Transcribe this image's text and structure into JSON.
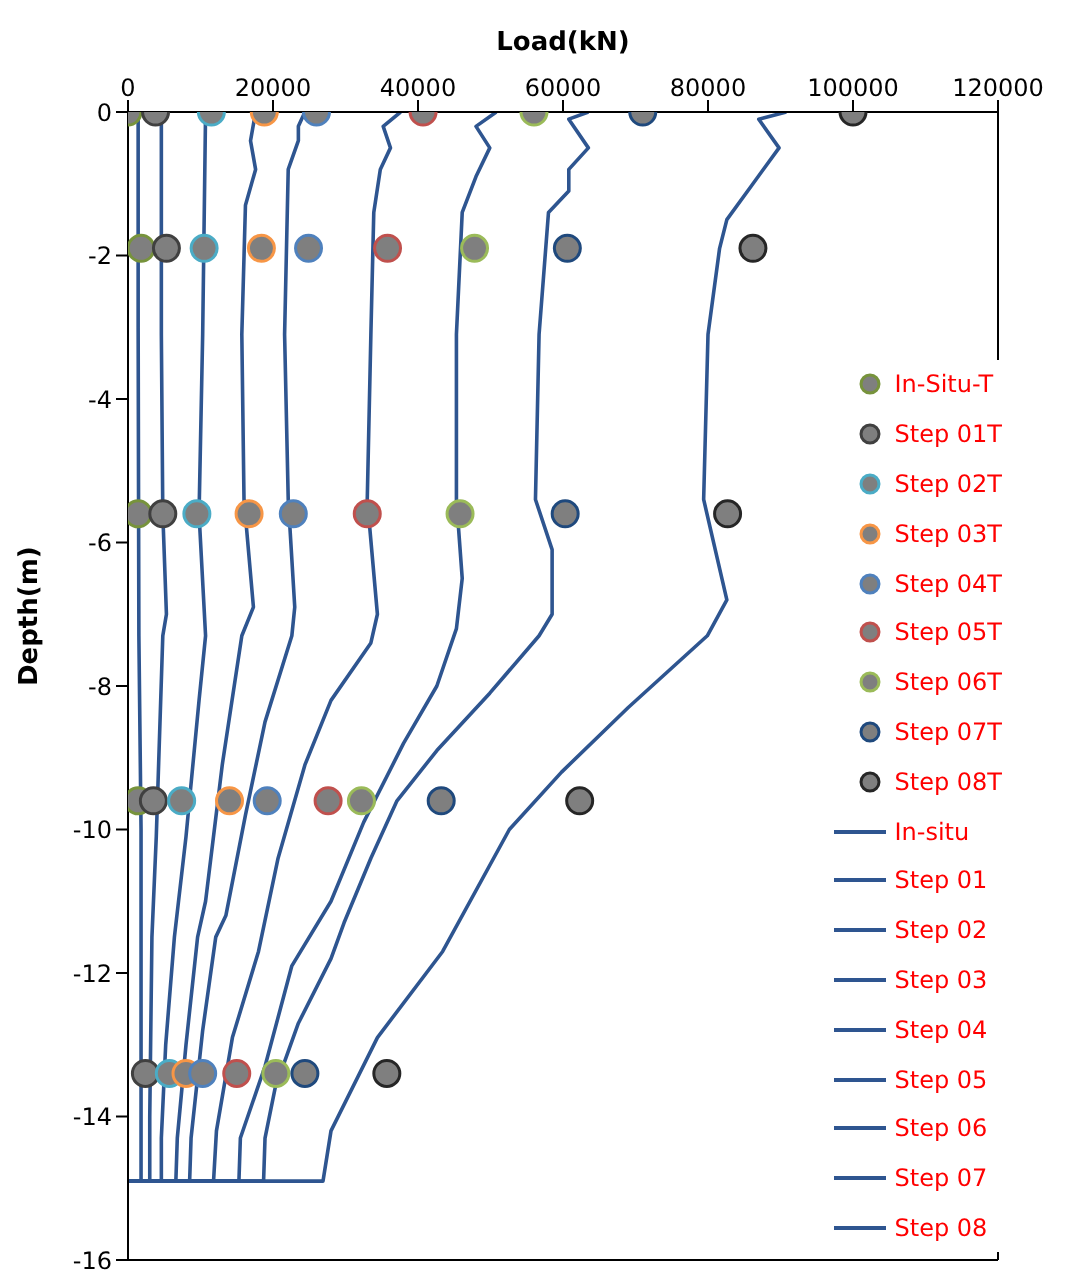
{
  "chart_data": {
    "type": "line",
    "xlabel": "Load(kN)",
    "ylabel": "Depth(m)",
    "xlim": [
      0,
      120000
    ],
    "xticks": [
      0,
      20000,
      40000,
      60000,
      80000,
      100000,
      120000
    ],
    "ylim": [
      -16,
      0
    ],
    "yticks": [
      0,
      -2,
      -4,
      -6,
      -8,
      -10,
      -12,
      -14,
      -16
    ],
    "legend": "right",
    "series": [
      {
        "name": "In-Situ-T",
        "type": "scatter",
        "marker": "circle",
        "color": "#77933c",
        "x": [
          0,
          1800,
          1400,
          1400,
          null
        ],
        "values": [
          0,
          -1.9,
          -5.6,
          -9.6,
          null
        ]
      },
      {
        "name": "Step 01T",
        "type": "scatter",
        "marker": "circle",
        "color": "#404040",
        "x": [
          3800,
          5300,
          4800,
          3500,
          2400
        ],
        "values": [
          0,
          -1.9,
          -5.6,
          -9.6,
          -13.4
        ]
      },
      {
        "name": "Step 02T",
        "type": "scatter",
        "marker": "circle",
        "color": "#4bacc6",
        "x": [
          11500,
          10500,
          9500,
          7400,
          5700
        ],
        "values": [
          0,
          -1.9,
          -5.6,
          -9.6,
          -13.4
        ]
      },
      {
        "name": "Step 03T",
        "type": "scatter",
        "marker": "circle",
        "color": "#f79646",
        "x": [
          18800,
          18400,
          16700,
          14000,
          8000
        ],
        "values": [
          0,
          -1.9,
          -5.6,
          -9.6,
          -13.4
        ]
      },
      {
        "name": "Step 04T",
        "type": "scatter",
        "marker": "circle",
        "color": "#4f81bd",
        "x": [
          26000,
          24900,
          22800,
          19200,
          10300
        ],
        "values": [
          0,
          -1.9,
          -5.6,
          -9.6,
          -13.4
        ]
      },
      {
        "name": "Step 05T",
        "type": "scatter",
        "marker": "circle",
        "color": "#c0504d",
        "x": [
          40700,
          35800,
          33000,
          27600,
          15000
        ],
        "values": [
          0,
          -1.9,
          -5.6,
          -9.6,
          -13.4
        ]
      },
      {
        "name": "Step 06T",
        "type": "scatter",
        "marker": "circle",
        "color": "#9bbb59",
        "x": [
          56000,
          47800,
          45800,
          32200,
          20400
        ],
        "values": [
          0,
          -1.9,
          -5.6,
          -9.6,
          -13.4
        ]
      },
      {
        "name": "Step 07T",
        "type": "scatter",
        "marker": "circle",
        "color": "#1f497d",
        "x": [
          71000,
          60600,
          60300,
          43200,
          24400
        ],
        "values": [
          0,
          -1.9,
          -5.6,
          -9.6,
          -13.4
        ]
      },
      {
        "name": "Step 08T",
        "type": "scatter",
        "marker": "circle",
        "color": "#262626",
        "x": [
          100000,
          86200,
          82700,
          62300,
          35700
        ],
        "values": [
          0,
          -1.9,
          -5.6,
          -9.6,
          -13.4
        ]
      },
      {
        "name": "In-situ",
        "marker": "none",
        "color": "#2e5590",
        "x": [
          1400,
          1400,
          1500,
          1800,
          1800,
          1800,
          0
        ],
        "values": [
          0,
          -3,
          -7.3,
          -10,
          -11.5,
          -14.9,
          -14.9
        ]
      },
      {
        "name": "Step 01",
        "marker": "none",
        "color": "#2e5590",
        "x": [
          4600,
          4600,
          4800,
          5300,
          4800,
          3900,
          3300,
          3000,
          3000,
          0
        ],
        "values": [
          0,
          -3.1,
          -5.6,
          -7,
          -7.3,
          -10.1,
          -11.5,
          -14,
          -14.9,
          -14.9
        ]
      },
      {
        "name": "Step 02",
        "marker": "none",
        "color": "#2e5590",
        "x": [
          10700,
          10300,
          9800,
          10700,
          9800,
          8000,
          6400,
          5200,
          4600,
          4600,
          0
        ],
        "values": [
          0,
          -3.1,
          -5.6,
          -7.3,
          -8.2,
          -10.1,
          -11.5,
          -13,
          -14.3,
          -14.9,
          -14.9
        ]
      },
      {
        "name": "Step 03",
        "marker": "none",
        "color": "#2e5590",
        "x": [
          17600,
          16900,
          17600,
          16200,
          15700,
          16000,
          17300,
          15700,
          13000,
          10700,
          9600,
          8000,
          6800,
          6600,
          0
        ],
        "values": [
          0,
          -0.4,
          -0.8,
          -1.3,
          -3.1,
          -5.4,
          -6.9,
          -7.3,
          -9.1,
          -11,
          -11.5,
          -13,
          -14.3,
          -14.9,
          -14.9
        ]
      },
      {
        "name": "Step 04",
        "marker": "none",
        "color": "#2e5590",
        "x": [
          24400,
          23500,
          23500,
          22100,
          21600,
          22100,
          23000,
          22600,
          18900,
          16200,
          13500,
          12100,
          10300,
          8700,
          8500,
          0
        ],
        "values": [
          0,
          -0.2,
          -0.4,
          -0.8,
          -3.1,
          -5.4,
          -6.9,
          -7.3,
          -8.5,
          -9.8,
          -11.2,
          -11.5,
          -12.8,
          -14.3,
          -14.9,
          -14.9
        ]
      },
      {
        "name": "Step 05",
        "marker": "none",
        "color": "#2e5590",
        "x": [
          37600,
          35200,
          36200,
          34800,
          33900,
          33500,
          33000,
          34400,
          33500,
          28000,
          24400,
          20700,
          18000,
          14400,
          12200,
          11800,
          0
        ],
        "values": [
          0,
          -0.2,
          -0.5,
          -0.8,
          -1.4,
          -3.1,
          -5.4,
          -7,
          -7.4,
          -8.2,
          -9.1,
          -10.4,
          -11.7,
          -12.9,
          -14.2,
          -14.9,
          -14.9
        ]
      },
      {
        "name": "Step 06",
        "marker": "none",
        "color": "#2e5590",
        "x": [
          50800,
          48000,
          49900,
          48000,
          46100,
          45300,
          45300,
          46100,
          45300,
          42600,
          38000,
          32500,
          28000,
          22600,
          18900,
          15500,
          15300,
          0
        ],
        "values": [
          0,
          -0.2,
          -0.5,
          -0.9,
          -1.4,
          -3.1,
          -5.4,
          -6.5,
          -7.2,
          -8,
          -8.8,
          -9.9,
          -11,
          -11.9,
          -13.3,
          -14.3,
          -14.9,
          -14.9
        ]
      },
      {
        "name": "Step 07",
        "marker": "none",
        "color": "#2e5590",
        "x": [
          63500,
          60800,
          63500,
          60800,
          60800,
          58000,
          56700,
          56200,
          58500,
          58500,
          56700,
          49900,
          42600,
          37100,
          33500,
          29800,
          28000,
          23500,
          20300,
          18900,
          18700,
          0
        ],
        "values": [
          0,
          -0.1,
          -0.5,
          -0.8,
          -1.1,
          -1.4,
          -3.1,
          -5.4,
          -6.1,
          -7,
          -7.3,
          -8.1,
          -8.9,
          -9.6,
          -10.4,
          -11.3,
          -11.8,
          -12.7,
          -13.6,
          -14.3,
          -14.9,
          -14.9
        ]
      },
      {
        "name": "Step 08",
        "marker": "none",
        "color": "#2e5590",
        "x": [
          90800,
          87000,
          89800,
          86200,
          82600,
          81600,
          80000,
          79400,
          82600,
          79900,
          69000,
          59800,
          52600,
          43400,
          34400,
          28000,
          26900,
          0
        ],
        "values": [
          0,
          -0.1,
          -0.5,
          -1,
          -1.5,
          -1.9,
          -3.1,
          -5.4,
          -6.8,
          -7.3,
          -8.3,
          -9.2,
          -10,
          -11.7,
          -12.9,
          -14.2,
          -14.9,
          -14.9
        ]
      }
    ]
  }
}
